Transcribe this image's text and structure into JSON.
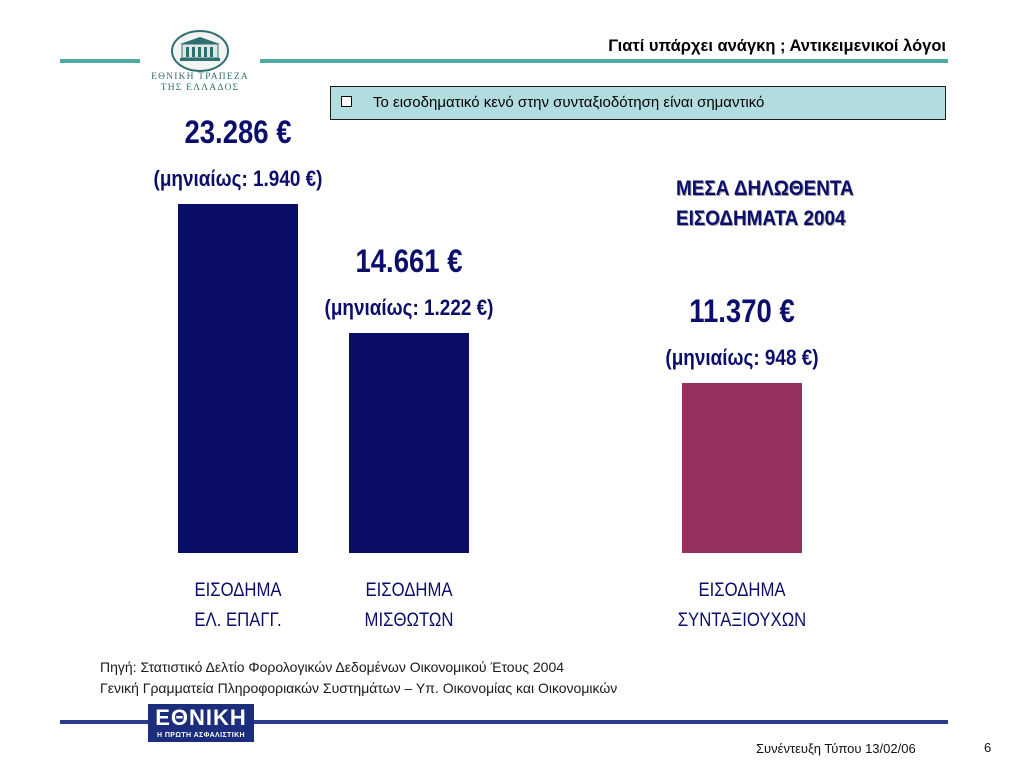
{
  "header": {
    "slide_title": "Γιατί υπάρχει ανάγκη ; Αντικειμενικοί λόγοι",
    "logo_text_line1": "ΕΘΝΙΚΗ ΤΡΑΠΕΖΑ",
    "logo_text_line2": "ΤΗΣ ΕΛΛΑΔΟΣ",
    "rule_color": "#4fa9a4"
  },
  "callout": {
    "text": "Το εισοδηματικό κενό στην συνταξιοδότηση είναι σημαντικό",
    "bullet_icon": "square-bullet-icon",
    "background": "#b2dde0"
  },
  "chart_data": {
    "type": "bar",
    "title": "ΜΕΣΑ ΔΗΛΩΘΕΝΤΑ ΕΙΣΟΔΗΜΑΤΑ 2004",
    "title_line1": "ΜΕΣΑ ΔΗΛΩΘΕΝΤΑ",
    "title_line2": "ΕΙΣΟΔΗΜΑΤΑ 2004",
    "categories": [
      {
        "line1": "ΕΙΣΟΔΗΜΑ",
        "line2": "ΕΛ. ΕΠΑΓΓ."
      },
      {
        "line1": "ΕΙΣΟΔΗΜΑ",
        "line2": "ΜΙΣΘΩΤΩΝ"
      },
      {
        "line1": "ΕΙΣΟΔΗΜΑ",
        "line2": "ΣΥΝΤΑΞΙΟΥΧΩΝ"
      }
    ],
    "values": [
      23286,
      14661,
      11370
    ],
    "monthly_values": [
      1940,
      1222,
      948
    ],
    "value_labels": [
      "23.286 €",
      "14.661 €",
      "11.370 €"
    ],
    "monthly_labels": [
      "(μηνιαίως: 1.940 €)",
      "(μηνιαίως: 1.222 €)",
      "(μηνιαίως: 948 €)"
    ],
    "bar_colors": [
      "#0a0d66",
      "#0a0d66",
      "#96305f"
    ],
    "ylim": [
      0,
      23286
    ],
    "grid": false,
    "legend": "none"
  },
  "source": {
    "line1": "Πηγή: Στατιστικό Δελτίο Φορολογικών Δεδομένων Οικονομικού Έτους 2004",
    "line2": "Γενική Γραμματεία Πληροφοριακών Συστημάτων – Υπ. Οικονομίας και Οικονομικών"
  },
  "footer": {
    "logo_main": "ΕΘΝΙΚΗ",
    "logo_sub": "Η ΠΡΩΤΗ ΑΣΦΑΛΙΣΤΙΚΗ",
    "logo_color": "#1c2d7d",
    "rule_color": "#2c3b8c",
    "event_text": "Συνέντευξη Τύπου 13/02/06",
    "page_number": "6"
  }
}
